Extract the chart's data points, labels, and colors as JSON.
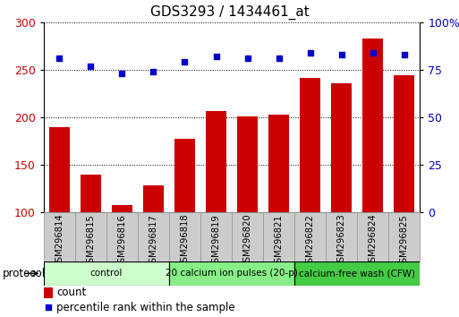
{
  "title": "GDS3293 / 1434461_at",
  "samples": [
    "GSM296814",
    "GSM296815",
    "GSM296816",
    "GSM296817",
    "GSM296818",
    "GSM296819",
    "GSM296820",
    "GSM296821",
    "GSM296822",
    "GSM296823",
    "GSM296824",
    "GSM296825"
  ],
  "bar_values": [
    190,
    140,
    108,
    128,
    177,
    207,
    201,
    203,
    241,
    236,
    283,
    244
  ],
  "percentile_values": [
    81,
    77,
    73,
    74,
    79,
    82,
    81,
    81,
    84,
    83,
    84,
    83
  ],
  "bar_color": "#cc0000",
  "percentile_color": "#0000cc",
  "ylim_left": [
    100,
    300
  ],
  "ylim_right": [
    0,
    100
  ],
  "yticks_left": [
    100,
    150,
    200,
    250,
    300
  ],
  "yticks_right": [
    0,
    25,
    50,
    75,
    100
  ],
  "groups": [
    {
      "label": "control",
      "start": 0,
      "end": 4,
      "color": "#ccffcc"
    },
    {
      "label": "20 calcium ion pulses (20-p)",
      "start": 4,
      "end": 8,
      "color": "#88ee88"
    },
    {
      "label": "calcium-free wash (CFW)",
      "start": 8,
      "end": 12,
      "color": "#44cc44"
    }
  ],
  "protocol_label": "protocol",
  "legend_count_label": "count",
  "legend_percentile_label": "percentile rank within the sample",
  "background_color": "#ffffff",
  "tick_label_color_left": "#cc0000",
  "tick_label_color_right": "#0000cc",
  "label_box_color": "#cccccc",
  "label_box_edge_color": "#999999"
}
